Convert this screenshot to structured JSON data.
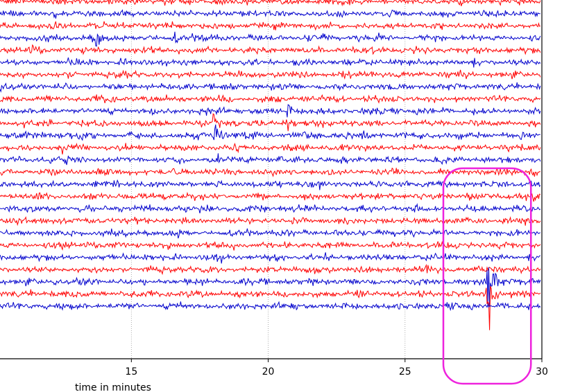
{
  "chart_data": {
    "type": "line",
    "title": "",
    "xlabel": "time in minutes",
    "ylabel": "",
    "x_axis": {
      "xlim": [
        10.2,
        30
      ],
      "ticks": [
        15,
        20,
        25,
        30
      ],
      "tick_labels": [
        "15",
        "20",
        "25",
        "30"
      ],
      "grid": "vertical dotted at ticks"
    },
    "y_axis": {
      "ticks": [],
      "visible": false
    },
    "series_colors": {
      "odd": "#ff0000",
      "even": "#0000cc"
    },
    "trace_count": 26,
    "series_pattern": "helicorder: alternating red/blue seismic traces stacked vertically",
    "events": [
      {
        "trace": 10,
        "time_min": 18.0,
        "amplitude": "moderate"
      },
      {
        "trace": 11,
        "time_min": 18.0,
        "amplitude": "moderate"
      },
      {
        "trace": 9,
        "time_min": 20.7,
        "amplitude": "small"
      },
      {
        "trace": 10,
        "time_min": 20.7,
        "amplitude": "small"
      },
      {
        "trace": 3,
        "time_min": 16.5,
        "amplitude": "small"
      },
      {
        "trace": 3,
        "time_min": 13.7,
        "amplitude": "small"
      },
      {
        "trace": 23,
        "time_min": 28.0,
        "amplitude": "large"
      },
      {
        "trace": 24,
        "time_min": 28.0,
        "amplitude": "large"
      }
    ],
    "annotation": {
      "type": "highlight-box",
      "color": "#ee22dd",
      "x_range": [
        26.4,
        29.6
      ],
      "description": ""
    }
  }
}
